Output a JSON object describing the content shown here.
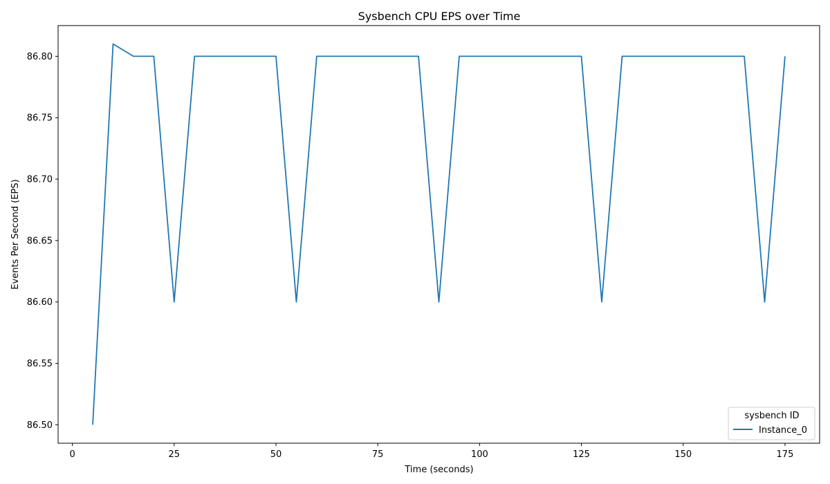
{
  "chart_data": {
    "type": "line",
    "title": "Sysbench CPU EPS over Time",
    "xlabel": "Time (seconds)",
    "ylabel": "Events Per Second (EPS)",
    "xlim": [
      -3.5,
      183.5
    ],
    "ylim": [
      86.485,
      86.825
    ],
    "xticks": [
      0,
      25,
      50,
      75,
      100,
      125,
      150,
      175
    ],
    "xtick_labels": [
      "0",
      "25",
      "50",
      "75",
      "100",
      "125",
      "150",
      "175"
    ],
    "yticks": [
      86.5,
      86.55,
      86.6,
      86.65,
      86.7,
      86.75,
      86.8
    ],
    "ytick_labels": [
      "86.50",
      "86.55",
      "86.60",
      "86.65",
      "86.70",
      "86.75",
      "86.80"
    ],
    "grid": false,
    "legend": {
      "title": "sysbench ID",
      "placement": "lower-right"
    },
    "series": [
      {
        "name": "Instance_0",
        "color": "#1f77b4",
        "x": [
          5,
          10,
          15,
          20,
          25,
          30,
          35,
          40,
          45,
          50,
          55,
          60,
          65,
          70,
          75,
          80,
          85,
          90,
          95,
          100,
          105,
          110,
          115,
          120,
          125,
          130,
          135,
          140,
          145,
          150,
          155,
          160,
          165,
          170,
          175
        ],
        "y": [
          86.5,
          86.81,
          86.8,
          86.8,
          86.6,
          86.8,
          86.8,
          86.8,
          86.8,
          86.8,
          86.6,
          86.8,
          86.8,
          86.8,
          86.8,
          86.8,
          86.8,
          86.6,
          86.8,
          86.8,
          86.8,
          86.8,
          86.8,
          86.8,
          86.8,
          86.6,
          86.8,
          86.8,
          86.8,
          86.8,
          86.8,
          86.8,
          86.8,
          86.6,
          86.8
        ]
      }
    ]
  }
}
